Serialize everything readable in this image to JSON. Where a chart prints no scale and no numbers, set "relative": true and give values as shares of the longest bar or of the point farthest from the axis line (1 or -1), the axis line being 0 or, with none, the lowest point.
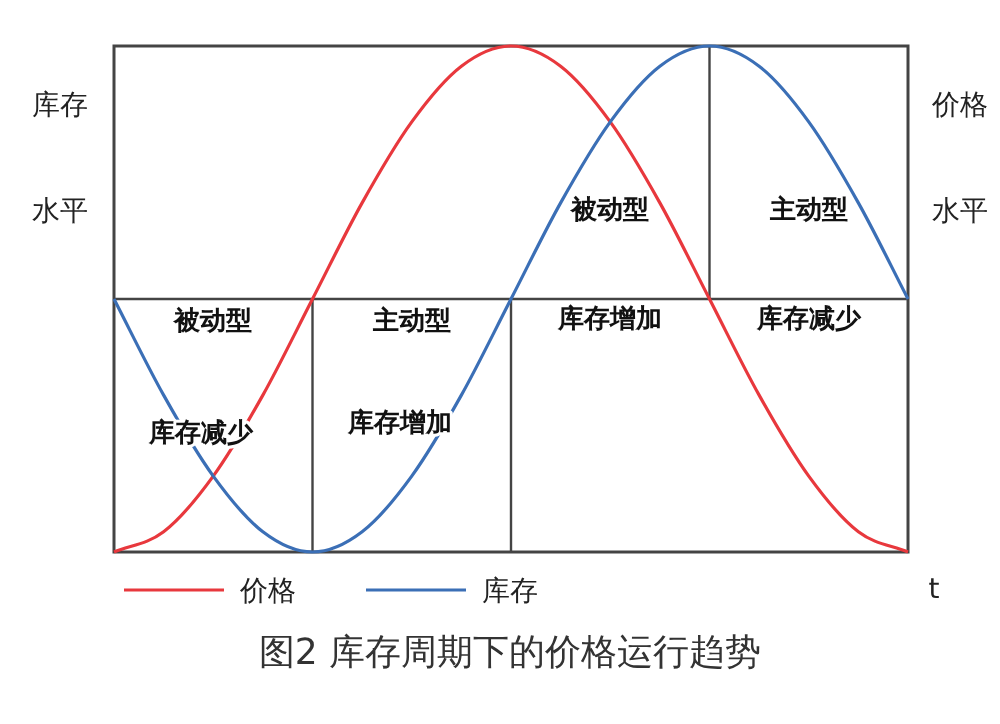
{
  "chart_data": {
    "type": "line",
    "relative": true,
    "title": "图2  库存周期下的价格运行趋势",
    "xlabel": "t",
    "ylabel": "库存",
    "y2label": "价格",
    "legend": "bottom",
    "categories": [
      null,
      null,
      null,
      null,
      null,
      null,
      null,
      null,
      null,
      null,
      null,
      null,
      null,
      null,
      null,
      null,
      null
    ],
    "series": [
      {
        "name": "价格",
        "color": "#e8383d",
        "values": [
          0,
          0.04,
          0.15,
          0.31,
          0.5,
          0.69,
          0.85,
          0.96,
          1,
          0.96,
          0.85,
          0.69,
          0.5,
          0.31,
          0.15,
          0.04,
          0
        ]
      },
      {
        "name": "库存",
        "color": "#3b6fb6",
        "values": [
          0.5,
          0.31,
          0.15,
          0.04,
          0,
          0.04,
          0.15,
          0.31,
          0.5,
          0.69,
          0.85,
          0.96,
          1,
          0.96,
          0.85,
          0.69,
          0.5
        ]
      }
    ],
    "ref_lines": [
      {
        "axis": "y",
        "value": 0.5,
        "color": "#444444"
      }
    ],
    "annotations": [
      "被动型",
      "主动型",
      "被动型",
      "主动型",
      "库存增加",
      "库存减少",
      "库存减少",
      "库存增加",
      "水平",
      "水平"
    ]
  }
}
